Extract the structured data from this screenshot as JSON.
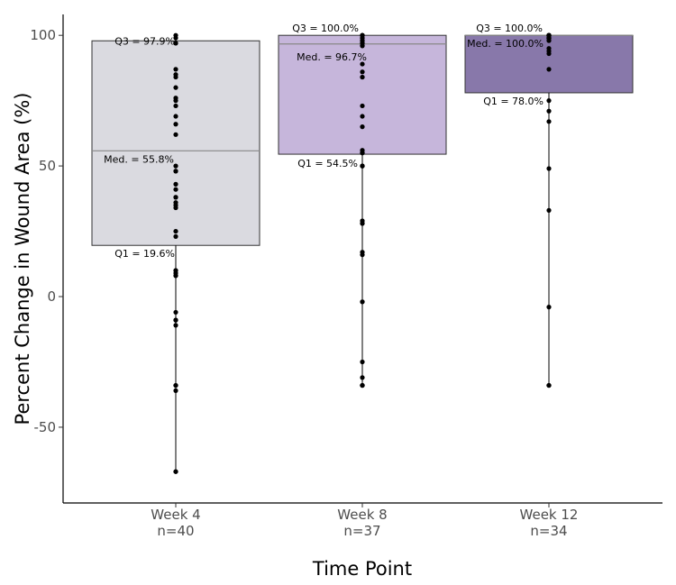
{
  "chart_data": {
    "type": "box",
    "title": "",
    "xlabel": "Time Point",
    "ylabel": "Percent Change in Wound Area (%)",
    "ylim": [
      -79,
      108
    ],
    "yticks": [
      100,
      50,
      0,
      -50
    ],
    "ytick_labels": [
      "100",
      "50",
      "0",
      "-50"
    ],
    "grid": false,
    "legend": "none",
    "groups": [
      {
        "name": "Week 4",
        "n_label": "n=40",
        "fill": "#dadae0",
        "q1": 19.6,
        "median": 55.8,
        "q3": 97.9,
        "whisker_min": -67,
        "whisker_max": 100,
        "labels": {
          "q3": "Q3 = 97.9%",
          "median": "Med. = 55.8%",
          "q1": "Q1 = 19.6%"
        },
        "points": [
          100,
          99,
          97,
          97,
          87,
          85,
          84,
          80,
          76,
          75,
          73,
          69,
          66,
          62,
          50,
          48,
          48,
          43,
          41,
          38,
          38,
          36,
          35,
          34,
          25,
          23,
          10,
          10,
          9,
          8,
          8,
          -6,
          -9,
          -9,
          -11,
          -34,
          -34,
          -36,
          -67,
          -67
        ]
      },
      {
        "name": "Week 8",
        "n_label": "n=37",
        "fill": "#c6b6db",
        "q1": 54.5,
        "median": 96.7,
        "q3": 100.0,
        "whisker_min": -34,
        "whisker_max": 100,
        "labels": {
          "q3": "Q3 = 100.0%",
          "median": "Med. = 96.7%",
          "q1": "Q1 = 54.5%"
        },
        "points": [
          100,
          100,
          100,
          100,
          99,
          98,
          98,
          97,
          97,
          96,
          96,
          89,
          86,
          84,
          84,
          73,
          69,
          65,
          56,
          55,
          55,
          50,
          50,
          50,
          29,
          28,
          28,
          17,
          16,
          -2,
          -2,
          -25,
          -31,
          -34,
          -34,
          -34,
          -34
        ]
      },
      {
        "name": "Week 12",
        "n_label": "n=34",
        "fill": "#8878aa",
        "q1": 78.0,
        "median": 100.0,
        "q3": 100.0,
        "whisker_min": -34,
        "whisker_max": 100,
        "labels": {
          "q3": "Q3 = 100.0%",
          "median": "Med. = 100.0%",
          "q1": "Q1 = 78.0%"
        },
        "points": [
          100,
          100,
          100,
          100,
          100,
          100,
          100,
          100,
          100,
          100,
          100,
          100,
          100,
          100,
          99,
          99,
          99,
          99,
          99,
          98,
          98,
          95,
          94,
          93,
          87,
          75,
          71,
          67,
          49,
          33,
          -4,
          -34,
          -34,
          -34
        ]
      }
    ]
  }
}
